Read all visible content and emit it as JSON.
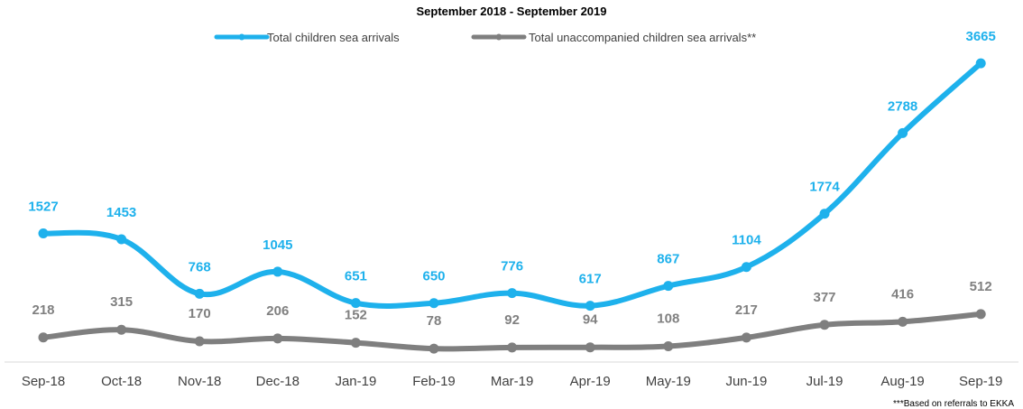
{
  "chart_data": {
    "type": "line",
    "title": "September 2018 - September 2019",
    "categories": [
      "Sep-18",
      "Oct-18",
      "Nov-18",
      "Dec-18",
      "Jan-19",
      "Feb-19",
      "Mar-19",
      "Apr-19",
      "May-19",
      "Jun-19",
      "Jul-19",
      "Aug-19",
      "Sep-19"
    ],
    "series": [
      {
        "name": "Total children sea arrivals",
        "color": "#1EB1EC",
        "values": [
          1527,
          1453,
          768,
          1045,
          651,
          650,
          776,
          617,
          867,
          1104,
          1774,
          2788,
          3665
        ]
      },
      {
        "name": "Total unaccompanied children sea arrivals**",
        "color": "#7F7F7F",
        "values": [
          218,
          315,
          170,
          206,
          152,
          78,
          92,
          94,
          108,
          217,
          377,
          416,
          512
        ]
      }
    ],
    "ylim": [
      0,
      3800
    ],
    "grid": false,
    "legend": "top-center"
  },
  "footnote": "***Based on referrals to EKKA"
}
